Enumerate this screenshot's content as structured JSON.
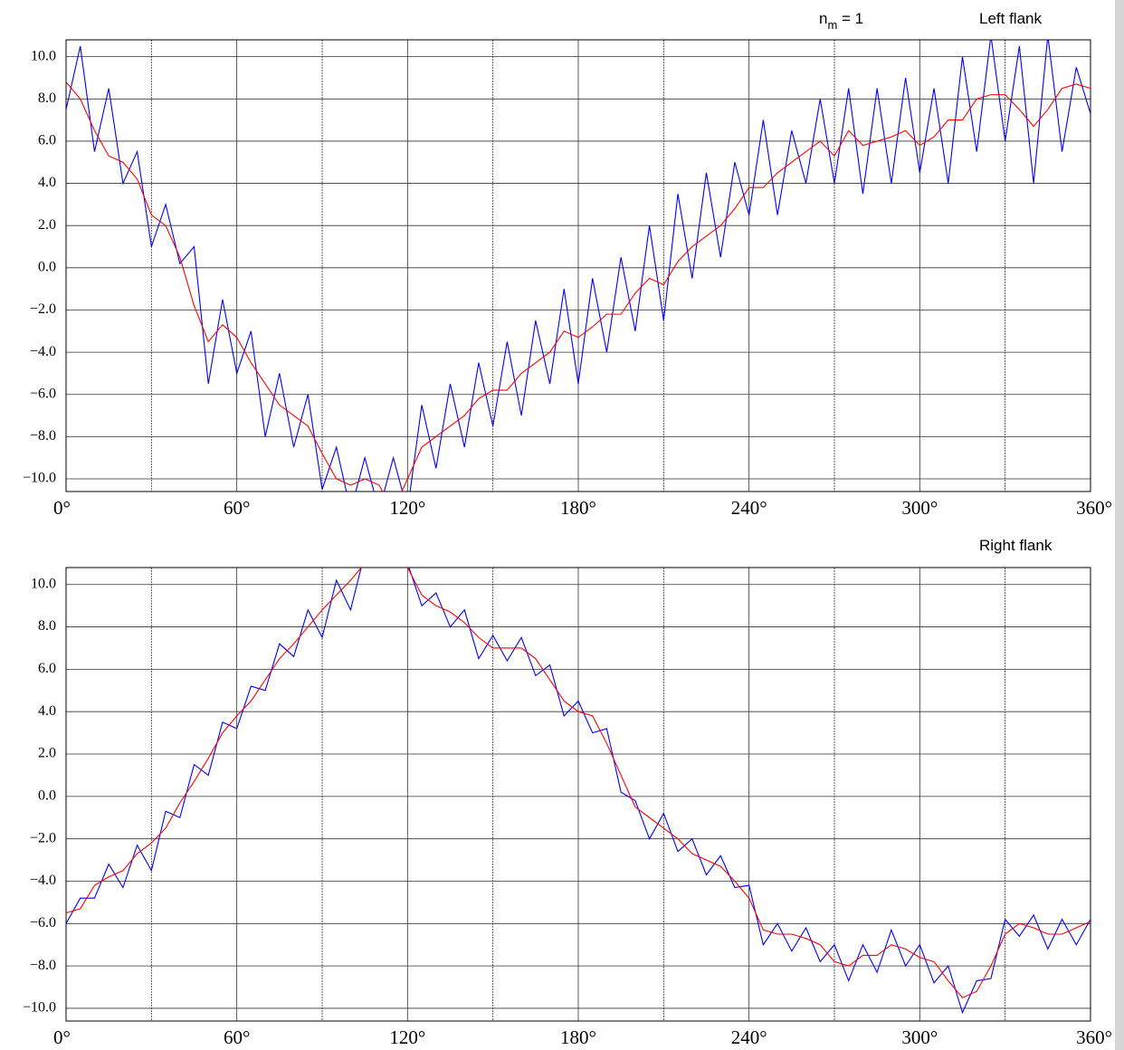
{
  "chart_data": [
    {
      "type": "line",
      "title": "Left flank",
      "annotation": [
        "n",
        "m",
        " = 1"
      ],
      "x": [
        0,
        5,
        10,
        15,
        20,
        25,
        30,
        35,
        40,
        45,
        50,
        55,
        60,
        65,
        70,
        75,
        80,
        85,
        90,
        95,
        100,
        105,
        110,
        115,
        120,
        125,
        130,
        135,
        140,
        145,
        150,
        155,
        160,
        165,
        170,
        175,
        180,
        185,
        190,
        195,
        200,
        205,
        210,
        215,
        220,
        225,
        230,
        235,
        240,
        245,
        250,
        255,
        260,
        265,
        270,
        275,
        280,
        285,
        290,
        295,
        300,
        305,
        310,
        315,
        320,
        325,
        330,
        335,
        340,
        345,
        350,
        355,
        360
      ],
      "series": [
        {
          "color": "#0000ff",
          "values": [
            7.5,
            10.5,
            5.5,
            8.5,
            4.0,
            5.5,
            1.0,
            3.0,
            0.2,
            1.0,
            -5.5,
            -1.5,
            -5.0,
            -3.0,
            -8.0,
            -5.0,
            -8.5,
            -6.0,
            -10.5,
            -8.5,
            -11.5,
            -9.0,
            -11.5,
            -9.0,
            -11.5,
            -6.5,
            -9.5,
            -5.5,
            -8.5,
            -4.5,
            -7.5,
            -3.5,
            -7.0,
            -2.5,
            -5.5,
            -1.0,
            -5.5,
            -0.5,
            -4.0,
            0.5,
            -3.0,
            2.0,
            -2.5,
            3.5,
            -0.5,
            4.5,
            0.5,
            5.0,
            2.5,
            7.0,
            2.5,
            6.5,
            4.0,
            8.0,
            4.0,
            8.5,
            3.5,
            8.5,
            4.0,
            9.0,
            4.5,
            8.5,
            4.0,
            10.0,
            5.5,
            11.0,
            6.0,
            10.5,
            4.0,
            11.0,
            5.5,
            9.5,
            7.3
          ]
        },
        {
          "color": "#ff0000",
          "values": [
            8.8,
            8.0,
            6.5,
            5.3,
            5.0,
            4.2,
            2.5,
            2.0,
            0.5,
            -1.8,
            -3.5,
            -2.7,
            -3.3,
            -4.5,
            -5.5,
            -6.5,
            -7.0,
            -7.5,
            -8.8,
            -10.0,
            -10.3,
            -10.0,
            -10.3,
            -11.5,
            -10.0,
            -8.5,
            -8.0,
            -7.5,
            -7.0,
            -6.2,
            -5.8,
            -5.8,
            -5.0,
            -4.5,
            -4.0,
            -3.0,
            -3.3,
            -2.8,
            -2.2,
            -2.2,
            -1.2,
            -0.5,
            -0.8,
            0.3,
            1.0,
            1.5,
            2.0,
            2.8,
            3.8,
            3.8,
            4.5,
            5.0,
            5.5,
            6.0,
            5.3,
            6.5,
            5.8,
            6.0,
            6.2,
            6.5,
            5.8,
            6.2,
            7.0,
            7.0,
            8.0,
            8.2,
            8.2,
            7.5,
            6.7,
            7.5,
            8.5,
            8.7,
            8.5
          ]
        }
      ],
      "xlim": [
        0,
        360
      ],
      "xticks": [
        {
          "value": 0,
          "label": "0°"
        },
        {
          "value": 60,
          "label": "60°"
        },
        {
          "value": 120,
          "label": "120°"
        },
        {
          "value": 180,
          "label": "180°"
        },
        {
          "value": 240,
          "label": "240°"
        },
        {
          "value": 300,
          "label": "300°"
        },
        {
          "value": 360,
          "label": "360°"
        }
      ],
      "xgrid": [
        30,
        90,
        150,
        210,
        270,
        330
      ],
      "ylim": [
        -10.6,
        10.8
      ],
      "yticks": [
        {
          "value": 10,
          "label": "10.0"
        },
        {
          "value": 8,
          "label": "8.0"
        },
        {
          "value": 6,
          "label": "6.0"
        },
        {
          "value": 4,
          "label": "4.0"
        },
        {
          "value": 2,
          "label": "2.0"
        },
        {
          "value": 0,
          "label": "0.0"
        },
        {
          "value": -2,
          "label": "−2.0"
        },
        {
          "value": -4,
          "label": "−4.0"
        },
        {
          "value": -6,
          "label": "−6.0"
        },
        {
          "value": -8,
          "label": "−8.0"
        },
        {
          "value": -10,
          "label": "−10.0"
        }
      ],
      "grid": true
    },
    {
      "type": "line",
      "title": "Right flank",
      "x": [
        0,
        5,
        10,
        15,
        20,
        25,
        30,
        35,
        40,
        45,
        50,
        55,
        60,
        65,
        70,
        75,
        80,
        85,
        90,
        95,
        100,
        105,
        110,
        115,
        120,
        125,
        130,
        135,
        140,
        145,
        150,
        155,
        160,
        165,
        170,
        175,
        180,
        185,
        190,
        195,
        200,
        205,
        210,
        215,
        220,
        225,
        230,
        235,
        240,
        245,
        250,
        255,
        260,
        265,
        270,
        275,
        280,
        285,
        290,
        295,
        300,
        305,
        310,
        315,
        320,
        325,
        330,
        335,
        340,
        345,
        350,
        355,
        360
      ],
      "series": [
        {
          "color": "#0000ff",
          "values": [
            -6.0,
            -4.8,
            -4.8,
            -3.2,
            -4.3,
            -2.3,
            -3.5,
            -0.7,
            -1.0,
            1.5,
            1.0,
            3.5,
            3.2,
            5.2,
            5.0,
            7.2,
            6.6,
            8.8,
            7.5,
            10.2,
            8.8,
            11.5,
            11.5,
            11.5,
            11.0,
            9.0,
            9.6,
            8.0,
            8.8,
            6.5,
            7.6,
            6.4,
            7.5,
            5.7,
            6.2,
            3.8,
            4.5,
            3.0,
            3.2,
            0.2,
            -0.2,
            -2.0,
            -0.8,
            -2.6,
            -2.0,
            -3.7,
            -2.8,
            -4.3,
            -4.2,
            -7.0,
            -6.0,
            -7.3,
            -6.2,
            -7.8,
            -7.0,
            -8.7,
            -7.0,
            -8.3,
            -6.3,
            -8.0,
            -7.0,
            -8.8,
            -8.0,
            -10.2,
            -8.7,
            -8.6,
            -5.8,
            -6.6,
            -5.6,
            -7.2,
            -5.8,
            -7.0,
            -5.8
          ]
        },
        {
          "color": "#ff0000",
          "values": [
            -5.5,
            -5.3,
            -4.2,
            -3.8,
            -3.5,
            -2.7,
            -2.2,
            -1.5,
            -0.3,
            0.7,
            1.8,
            3.0,
            3.8,
            4.5,
            5.5,
            6.5,
            7.2,
            8.0,
            8.8,
            9.5,
            10.2,
            11.0,
            11.8,
            11.8,
            10.8,
            9.5,
            9.0,
            8.7,
            8.2,
            7.5,
            7.0,
            7.0,
            7.0,
            6.5,
            5.5,
            4.5,
            4.0,
            3.8,
            2.5,
            1.0,
            -0.5,
            -1.0,
            -1.5,
            -2.0,
            -2.7,
            -3.0,
            -3.3,
            -4.0,
            -4.8,
            -6.3,
            -6.5,
            -6.5,
            -6.7,
            -7.0,
            -7.8,
            -8.0,
            -7.5,
            -7.5,
            -7.0,
            -7.2,
            -7.6,
            -7.8,
            -8.7,
            -9.5,
            -9.2,
            -8.0,
            -6.5,
            -6.0,
            -6.2,
            -6.5,
            -6.5,
            -6.2,
            -5.9
          ]
        }
      ],
      "xlim": [
        0,
        360
      ],
      "xticks": [
        {
          "value": 0,
          "label": "0°"
        },
        {
          "value": 60,
          "label": "60°"
        },
        {
          "value": 120,
          "label": "120°"
        },
        {
          "value": 180,
          "label": "180°"
        },
        {
          "value": 240,
          "label": "240°"
        },
        {
          "value": 300,
          "label": "300°"
        },
        {
          "value": 360,
          "label": "360°"
        }
      ],
      "xgrid": [
        30,
        90,
        150,
        210,
        270,
        330
      ],
      "ylim": [
        -10.6,
        10.8
      ],
      "yticks": [
        {
          "value": 10,
          "label": "10.0"
        },
        {
          "value": 8,
          "label": "8.0"
        },
        {
          "value": 6,
          "label": "6.0"
        },
        {
          "value": 4,
          "label": "4.0"
        },
        {
          "value": 2,
          "label": "2.0"
        },
        {
          "value": 0,
          "label": "0.0"
        },
        {
          "value": -2,
          "label": "−2.0"
        },
        {
          "value": -4,
          "label": "−4.0"
        },
        {
          "value": -6,
          "label": "−6.0"
        },
        {
          "value": -8,
          "label": "−8.0"
        },
        {
          "value": -10,
          "label": "−10.0"
        }
      ],
      "grid": true
    }
  ]
}
